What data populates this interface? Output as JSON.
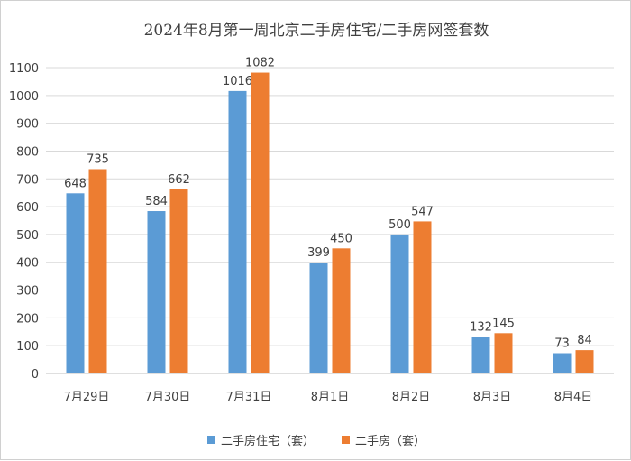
{
  "colors": {
    "series1": "#5b9bd5",
    "series2": "#ed7d31",
    "grid": "#d9d9d9",
    "axis": "#bfbfbf"
  },
  "chart_data": {
    "type": "bar",
    "title": "2024年8月第一周北京二手房住宅/二手房网签套数",
    "xlabel": "",
    "ylabel": "",
    "ylim": [
      0,
      1100
    ],
    "yticks": [
      0,
      100,
      200,
      300,
      400,
      500,
      600,
      700,
      800,
      900,
      1000,
      1100
    ],
    "grid": true,
    "legend": "bottom",
    "categories": [
      "7月29日",
      "7月30日",
      "7月31日",
      "8月1日",
      "8月2日",
      "8月3日",
      "8月4日"
    ],
    "series": [
      {
        "name": "二手房住宅（套）",
        "values": [
          648,
          584,
          1016,
          399,
          500,
          132,
          73
        ]
      },
      {
        "name": "二手房（套）",
        "values": [
          735,
          662,
          1082,
          450,
          547,
          145,
          84
        ]
      }
    ]
  }
}
